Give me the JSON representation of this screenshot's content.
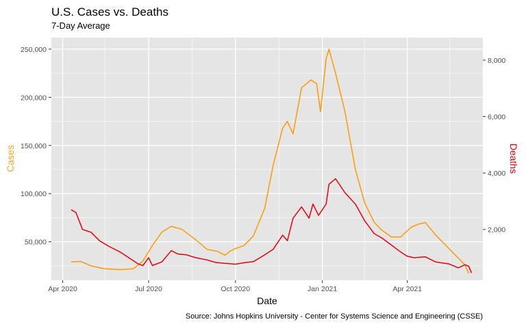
{
  "chart_data": {
    "type": "line",
    "title": "U.S. Cases vs. Deaths",
    "subtitle": "7-Day Average",
    "xlabel": "Date",
    "ylabel_left": "Cases",
    "ylabel_right": "Deaths",
    "caption": "Source:  Johns Hopkins University - Center for Systems Science and Engineering (CSSE)",
    "x_ticks": [
      "Apr 2020",
      "Jul 2020",
      "Oct 2020",
      "Jan 2021",
      "Apr 2021"
    ],
    "y_left_ticks": [
      "50,000",
      "100,000",
      "150,000",
      "200,000",
      "250,000"
    ],
    "y_right_ticks": [
      "2,000",
      "4,000",
      "6,000",
      "8,000"
    ],
    "xlim": [
      "2020-03-20",
      "2021-06-20"
    ],
    "ylim_left": [
      10000,
      262000
    ],
    "ylim_right": [
      200,
      8800
    ],
    "grid": true,
    "colors": {
      "cases": "#ff9900",
      "deaths": "#e8000b",
      "panel": "#e5e5e5",
      "grid": "#ffffff",
      "cases_axis_title": "#f5a623",
      "deaths_axis_title": "#e8000b"
    },
    "series": [
      {
        "axis": "left",
        "x": [
          "2020-04-10",
          "2020-04-20",
          "2020-05-01",
          "2020-05-15",
          "2020-06-01",
          "2020-06-15",
          "2020-06-25",
          "2020-07-05",
          "2020-07-15",
          "2020-07-25",
          "2020-08-05",
          "2020-08-20",
          "2020-09-01",
          "2020-09-12",
          "2020-09-20",
          "2020-09-25",
          "2020-10-01",
          "2020-10-10",
          "2020-10-20",
          "2020-11-01",
          "2020-11-10",
          "2020-11-20",
          "2020-11-25",
          "2020-12-01",
          "2020-12-10",
          "2020-12-20",
          "2020-12-26",
          "2020-12-30",
          "2021-01-05",
          "2021-01-08",
          "2021-01-15",
          "2021-01-25",
          "2021-02-05",
          "2021-02-15",
          "2021-02-25",
          "2021-03-05",
          "2021-03-15",
          "2021-03-25",
          "2021-04-05",
          "2021-04-12",
          "2021-04-20",
          "2021-05-01",
          "2021-05-15",
          "2021-05-25",
          "2021-06-01",
          "2021-06-05"
        ],
        "values": [
          29000,
          29500,
          25000,
          22000,
          21000,
          22000,
          30000,
          46000,
          60000,
          66000,
          63000,
          52000,
          42000,
          40000,
          36000,
          40000,
          43000,
          46000,
          56000,
          85000,
          130000,
          168000,
          175000,
          162000,
          210000,
          218000,
          214000,
          185000,
          240000,
          250000,
          225000,
          185000,
          125000,
          90000,
          70000,
          62000,
          55000,
          55000,
          65000,
          68000,
          70000,
          57000,
          43000,
          33000,
          26000,
          17000
        ]
      },
      {
        "axis": "right",
        "x": [
          "2020-04-10",
          "2020-04-15",
          "2020-04-22",
          "2020-05-01",
          "2020-05-10",
          "2020-05-20",
          "2020-06-01",
          "2020-06-10",
          "2020-06-20",
          "2020-06-25",
          "2020-07-01",
          "2020-07-05",
          "2020-07-15",
          "2020-07-25",
          "2020-08-01",
          "2020-08-10",
          "2020-08-20",
          "2020-09-01",
          "2020-09-10",
          "2020-09-20",
          "2020-10-01",
          "2020-10-10",
          "2020-10-20",
          "2020-11-01",
          "2020-11-10",
          "2020-11-20",
          "2020-11-25",
          "2020-12-01",
          "2020-12-10",
          "2020-12-18",
          "2020-12-22",
          "2020-12-28",
          "2021-01-05",
          "2021-01-08",
          "2021-01-15",
          "2021-01-25",
          "2021-02-05",
          "2021-02-15",
          "2021-02-25",
          "2021-03-05",
          "2021-03-15",
          "2021-03-25",
          "2021-04-01",
          "2021-04-08",
          "2021-04-20",
          "2021-05-01",
          "2021-05-15",
          "2021-05-25",
          "2021-06-01",
          "2021-06-05",
          "2021-06-08"
        ],
        "values": [
          2700,
          2600,
          2000,
          1900,
          1600,
          1400,
          1200,
          1000,
          780,
          720,
          1000,
          720,
          850,
          1250,
          1130,
          1100,
          1000,
          920,
          830,
          800,
          770,
          820,
          860,
          1100,
          1300,
          1800,
          1600,
          2400,
          2800,
          2400,
          2900,
          2500,
          2900,
          3600,
          3800,
          3300,
          2900,
          2300,
          1850,
          1700,
          1450,
          1200,
          1050,
          1000,
          1030,
          850,
          780,
          640,
          750,
          700,
          460
        ]
      }
    ]
  }
}
